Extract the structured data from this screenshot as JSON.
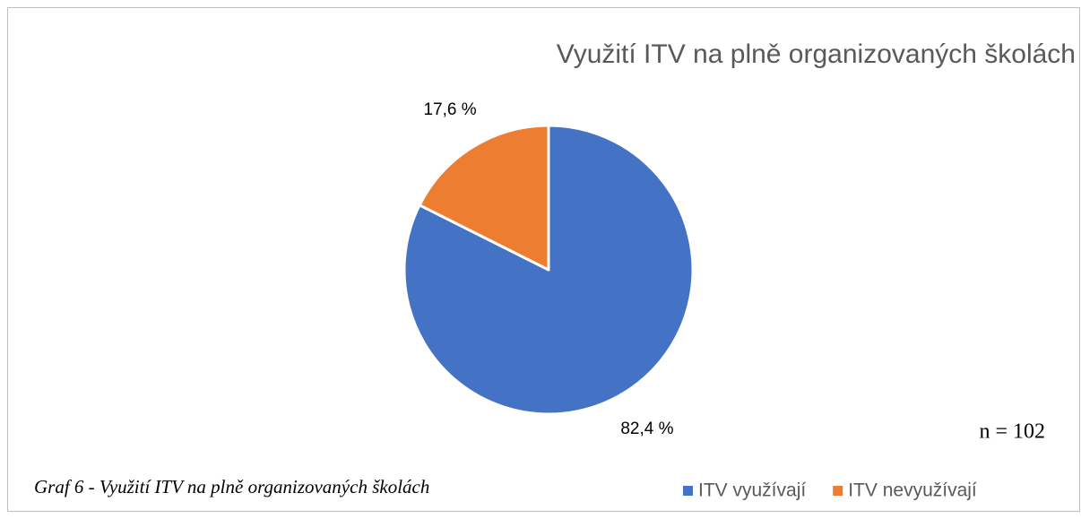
{
  "chart_data": {
    "type": "pie",
    "title": "Využití ITV na plně organizovaných školách",
    "categories": [
      "ITV využívají",
      "ITV nevyužívají"
    ],
    "values": [
      82.4,
      17.6
    ],
    "value_labels": [
      "82,4 %",
      "17,6 %"
    ],
    "colors": [
      "#4472c4",
      "#ed7d31"
    ],
    "annotation": "n = 102",
    "caption": "Graf 6 - Využití ITV na plně organizovaných školách",
    "legend": "bottom-right"
  }
}
